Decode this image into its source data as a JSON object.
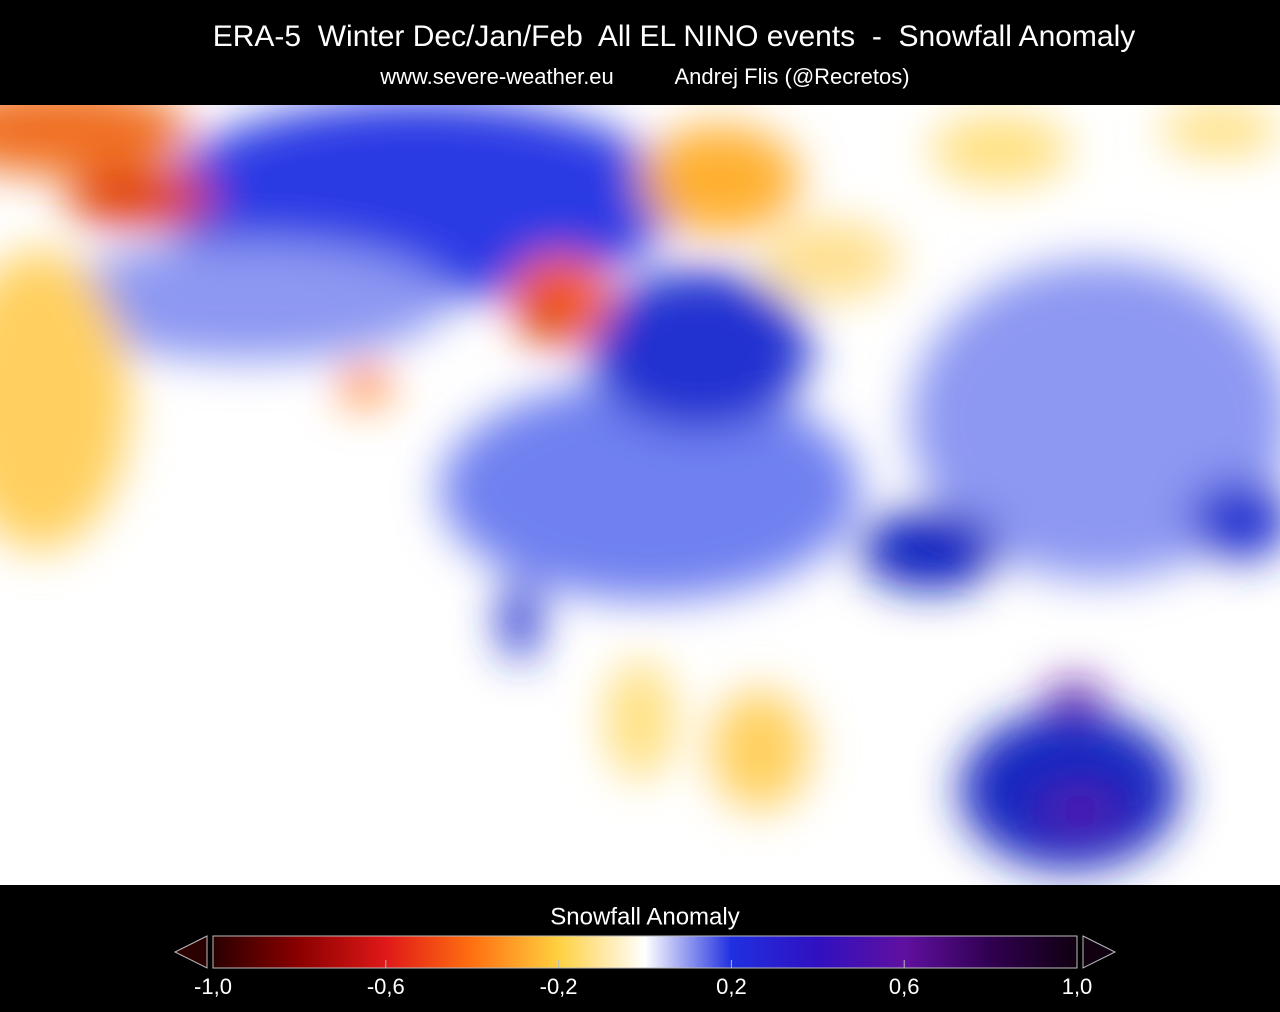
{
  "header": {
    "title": "ERA-5  Winter Dec/Jan/Feb  All EL NINO events  -  Snowfall Anomaly",
    "source": "www.severe-weather.eu",
    "author": "Andrej Flis (@Recretos)"
  },
  "colorbar": {
    "label": "Snowfall Anomaly",
    "lim": [
      -1,
      1
    ],
    "ticks": [
      {
        "value": -1,
        "label": "-1,0"
      },
      {
        "value": -0.6,
        "label": "-0,6"
      },
      {
        "value": -0.2,
        "label": "-0,2"
      },
      {
        "value": 0.2,
        "label": "0,2"
      },
      {
        "value": 0.6,
        "label": "0,6"
      },
      {
        "value": 1,
        "label": "1,0"
      }
    ]
  }
}
